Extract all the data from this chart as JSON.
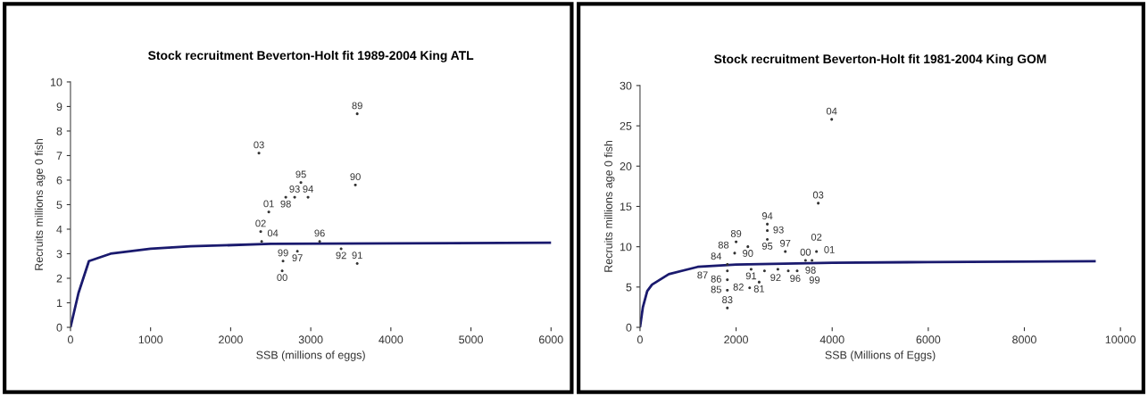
{
  "chart_data": [
    {
      "type": "scatter",
      "title": "Stock recruitment Beverton-Holt fit 1989-2004 King ATL",
      "xlabel": "SSB (millions of eggs)",
      "ylabel": "Recruits millions age 0 fish",
      "xlim": [
        0,
        6000
      ],
      "xticks": [
        0,
        1000,
        2000,
        3000,
        4000,
        5000,
        6000
      ],
      "ylim": [
        0,
        10
      ],
      "yticks": [
        0,
        1,
        2,
        3,
        4,
        5,
        6,
        7,
        8,
        9,
        10
      ],
      "grid": false,
      "legend": false,
      "marker": "none",
      "series": [
        {
          "marker": "circle",
          "color": "#333333",
          "x": [
            3580,
            3557,
            3580,
            3379,
            2799,
            2966,
            2877,
            3111,
            2833,
            2688,
            2654,
            2643,
            2476,
            2375,
            2353,
            2387
          ],
          "values": [
            8.7,
            5.8,
            2.6,
            3.2,
            5.3,
            5.3,
            5.9,
            3.5,
            3.1,
            5.3,
            2.7,
            2.3,
            4.7,
            3.9,
            7.1,
            3.5
          ]
        },
        {
          "type": "line",
          "color": "#1a1a6e",
          "x": [
            0,
            100,
            230,
            500,
            1000,
            1500,
            2500,
            4000,
            6000
          ],
          "values": [
            0,
            1.4,
            2.7,
            3.0,
            3.2,
            3.3,
            3.4,
            3.42,
            3.45
          ]
        }
      ],
      "annotations": [
        {
          "text": "89",
          "x": 3580,
          "y": 8.7
        },
        {
          "text": "90",
          "x": 3557,
          "y": 5.8
        },
        {
          "text": "91",
          "x": 3580,
          "y": 2.6
        },
        {
          "text": "92",
          "x": 3379,
          "y": 3.2
        },
        {
          "text": "93",
          "x": 2799,
          "y": 5.3
        },
        {
          "text": "94",
          "x": 2966,
          "y": 5.3
        },
        {
          "text": "95",
          "x": 2877,
          "y": 5.9
        },
        {
          "text": "96",
          "x": 3111,
          "y": 3.5
        },
        {
          "text": "97",
          "x": 2833,
          "y": 3.1
        },
        {
          "text": "98",
          "x": 2688,
          "y": 5.3
        },
        {
          "text": "99",
          "x": 2654,
          "y": 2.7
        },
        {
          "text": "00",
          "x": 2643,
          "y": 2.3
        },
        {
          "text": "01",
          "x": 2476,
          "y": 4.7
        },
        {
          "text": "02",
          "x": 2375,
          "y": 3.9
        },
        {
          "text": "03",
          "x": 2353,
          "y": 7.1
        },
        {
          "text": "04",
          "x": 2387,
          "y": 3.5
        }
      ]
    },
    {
      "type": "scatter",
      "title": "Stock recruitment Beverton-Holt fit 1981-2004 King GOM",
      "xlabel": "SSB (Millions of Eggs)",
      "ylabel": "Recruits millions age 0 fish",
      "xlim": [
        0,
        10000
      ],
      "xticks": [
        0,
        2000,
        4000,
        6000,
        8000,
        10000
      ],
      "ylim": [
        0,
        30
      ],
      "yticks": [
        0,
        5,
        10,
        15,
        20,
        25,
        30
      ],
      "grid": false,
      "legend": false,
      "marker": "none",
      "series": [
        {
          "marker": "circle",
          "color": "#333333",
          "x": [
            2480,
            2282,
            1818,
            1818,
            1818,
            1818,
            1818,
            1970,
            2000,
            2245,
            2313,
            2591,
            2650,
            2650,
            2650,
            2870,
            3024,
            3086,
            3271,
            3445,
            3580,
            3673,
            3710,
            3990
          ],
          "values": [
            5.6,
            4.9,
            2.4,
            7.8,
            4.6,
            5.9,
            7.0,
            9.2,
            10.6,
            10.0,
            7.2,
            7.0,
            12.0,
            12.8,
            10.9,
            7.2,
            9.4,
            7.0,
            7.0,
            8.3,
            8.3,
            9.4,
            15.4,
            25.8
          ]
        },
        {
          "type": "line",
          "color": "#1a1a6e",
          "x": [
            0,
            60,
            150,
            250,
            600,
            1200,
            2000,
            4000,
            6000,
            9460
          ],
          "values": [
            0,
            2.5,
            4.5,
            5.3,
            6.6,
            7.5,
            7.8,
            8.0,
            8.1,
            8.2
          ]
        }
      ],
      "annotations": [
        {
          "text": "81",
          "x": 2480,
          "y": 5.6
        },
        {
          "text": "82",
          "x": 2282,
          "y": 4.9
        },
        {
          "text": "83",
          "x": 1818,
          "y": 2.4
        },
        {
          "text": "84",
          "x": 1818,
          "y": 7.8
        },
        {
          "text": "85",
          "x": 1818,
          "y": 4.6
        },
        {
          "text": "86",
          "x": 1818,
          "y": 5.9
        },
        {
          "text": "87",
          "x": 1818,
          "y": 7.0
        },
        {
          "text": "88",
          "x": 1970,
          "y": 9.2
        },
        {
          "text": "89",
          "x": 2000,
          "y": 10.6
        },
        {
          "text": "90",
          "x": 2245,
          "y": 10.0
        },
        {
          "text": "91",
          "x": 2313,
          "y": 7.2
        },
        {
          "text": "92",
          "x": 2591,
          "y": 7.0
        },
        {
          "text": "93",
          "x": 2650,
          "y": 12.0
        },
        {
          "text": "94",
          "x": 2650,
          "y": 12.8
        },
        {
          "text": "95",
          "x": 2650,
          "y": 10.9
        },
        {
          "text": "96",
          "x": 2870,
          "y": 7.2
        },
        {
          "text": "97",
          "x": 3024,
          "y": 9.4
        },
        {
          "text": "98",
          "x": 3086,
          "y": 7.0
        },
        {
          "text": "99",
          "x": 3271,
          "y": 7.0
        },
        {
          "text": "00",
          "x": 3445,
          "y": 8.3
        },
        {
          "text": "01",
          "x": 3580,
          "y": 8.3
        },
        {
          "text": "02",
          "x": 3673,
          "y": 9.4
        },
        {
          "text": "03",
          "x": 3710,
          "y": 15.4
        },
        {
          "text": "04",
          "x": 3990,
          "y": 25.8
        }
      ]
    }
  ]
}
